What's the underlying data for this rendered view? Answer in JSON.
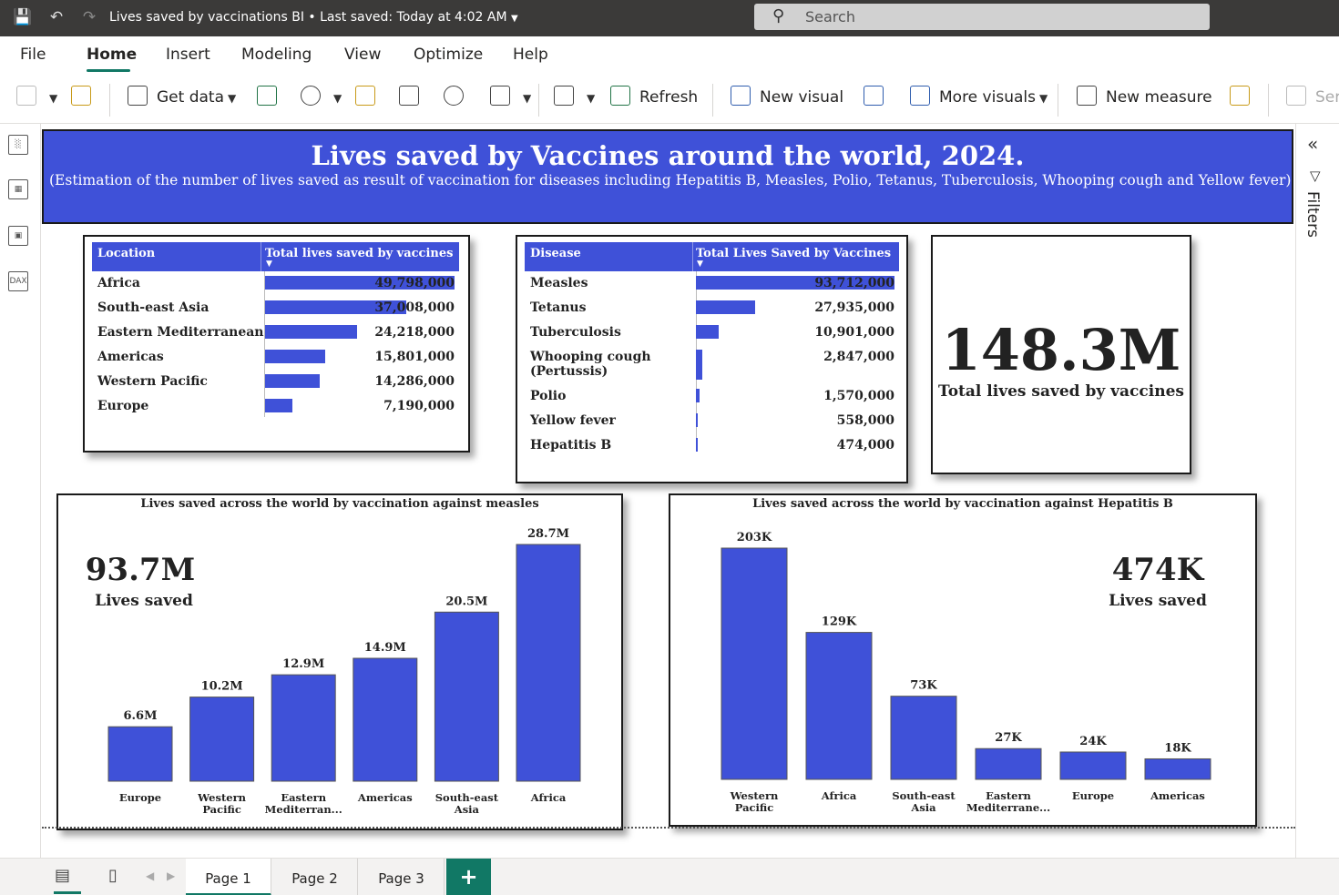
{
  "titlebar": {
    "doc_title": "Lives saved by vaccinations BI • Last saved: Today at 4:02 AM",
    "search_placeholder": "Search"
  },
  "menu": {
    "items": [
      "File",
      "Home",
      "Insert",
      "Modeling",
      "View",
      "Optimize",
      "Help"
    ],
    "active": "Home"
  },
  "ribbon": {
    "get_data": "Get data",
    "refresh": "Refresh",
    "new_visual": "New visual",
    "more_visuals": "More visuals",
    "new_measure": "New measure",
    "sensitivity_partial": "Ser"
  },
  "filters_label": "Filters",
  "banner": {
    "title": "Lives saved by Vaccines around the world, 2024.",
    "subtitle": "(Estimation of the number of lives saved as result of vaccination for diseases including Hepatitis B, Measles, Polio, Tetanus, Tuberculosis, Whooping cough and Yellow fever)"
  },
  "location_table": {
    "col1": "Location",
    "col2": "Total lives saved by vaccines",
    "rows": [
      {
        "label": "Africa",
        "value": 49798000,
        "display": "49,798,000"
      },
      {
        "label": "South-east Asia",
        "value": 37008000,
        "display": "37,008,000"
      },
      {
        "label": "Eastern Mediterranean",
        "value": 24218000,
        "display": "24,218,000"
      },
      {
        "label": "Americas",
        "value": 15801000,
        "display": "15,801,000"
      },
      {
        "label": "Western Pacific",
        "value": 14286000,
        "display": "14,286,000"
      },
      {
        "label": "Europe",
        "value": 7190000,
        "display": "7,190,000"
      }
    ]
  },
  "disease_table": {
    "col1": "Disease",
    "col2": "Total Lives Saved by Vaccines",
    "rows": [
      {
        "label": "Measles",
        "value": 93712000,
        "display": "93,712,000"
      },
      {
        "label": "Tetanus",
        "value": 27935000,
        "display": "27,935,000"
      },
      {
        "label": "Tuberculosis",
        "value": 10901000,
        "display": "10,901,000"
      },
      {
        "label": "Whooping cough (Pertussis)",
        "label_line1": "Whooping cough",
        "label_line2": "(Pertussis)",
        "value": 2847000,
        "display": "2,847,000"
      },
      {
        "label": "Polio",
        "value": 1570000,
        "display": "1,570,000"
      },
      {
        "label": "Yellow fever",
        "value": 558000,
        "display": "558,000"
      },
      {
        "label": "Hepatitis B",
        "value": 474000,
        "display": "474,000"
      }
    ]
  },
  "kpi": {
    "value": "148.3M",
    "label": "Total lives saved by vaccines"
  },
  "measles_chart": {
    "annotation_value": "93.7M",
    "annotation_label": "Lives saved"
  },
  "hepb_chart": {
    "annotation_value": "474K",
    "annotation_label": "Lives saved"
  },
  "chart_data": [
    {
      "type": "bar",
      "title": "Lives saved across the world by vaccination against measles",
      "categories": [
        "Europe",
        "Western Pacific",
        "Eastern Mediterran...",
        "Americas",
        "South-east Asia",
        "Africa"
      ],
      "values": [
        6.6,
        10.2,
        12.9,
        14.9,
        20.5,
        28.7
      ],
      "labels": [
        "6.6M",
        "10.2M",
        "12.9M",
        "14.9M",
        "20.5M",
        "28.7M"
      ],
      "unit": "M",
      "color": "#3f51d8"
    },
    {
      "type": "bar",
      "title": "Lives saved across the world by vaccination against Hepatitis B",
      "categories": [
        "Western Pacific",
        "Africa",
        "South-east Asia",
        "Eastern Mediterrane...",
        "Europe",
        "Americas"
      ],
      "values": [
        203,
        129,
        73,
        27,
        24,
        18
      ],
      "labels": [
        "203K",
        "129K",
        "73K",
        "27K",
        "24K",
        "18K"
      ],
      "unit": "K",
      "color": "#3f51d8"
    }
  ],
  "pages": [
    "Page 1",
    "Page 2",
    "Page 3"
  ],
  "active_page": "Page 1",
  "add_page_label": "+",
  "colors": {
    "accent": "#3f51d8",
    "titlebar": "#3b3a39",
    "powerbi_green": "#117865"
  }
}
